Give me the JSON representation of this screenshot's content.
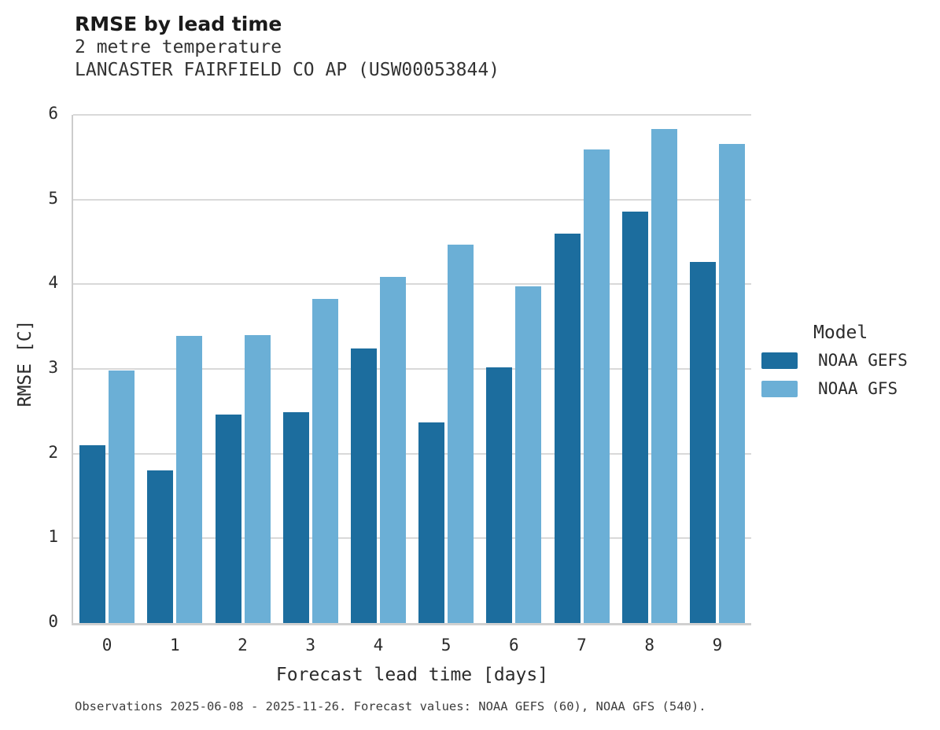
{
  "chart_data": {
    "type": "bar",
    "title": "RMSE by lead time",
    "subtitle": "2 metre temperature",
    "subtitle2": "LANCASTER FAIRFIELD CO AP (USW00053844)",
    "categories": [
      "0",
      "1",
      "2",
      "3",
      "4",
      "5",
      "6",
      "7",
      "8",
      "9"
    ],
    "series": [
      {
        "name": "NOAA GEFS",
        "color": "#1c6d9e",
        "values": [
          2.1,
          1.8,
          2.46,
          2.49,
          3.24,
          2.37,
          3.02,
          4.6,
          4.86,
          4.26
        ]
      },
      {
        "name": "NOAA GFS",
        "color": "#6bafd6",
        "values": [
          2.98,
          3.39,
          3.4,
          3.83,
          4.09,
          4.47,
          3.98,
          5.59,
          5.83,
          5.66
        ]
      }
    ],
    "xlabel": "Forecast lead time [days]",
    "ylabel": "RMSE [C]",
    "ylim": [
      0,
      6
    ],
    "yticks": [
      0,
      1,
      2,
      3,
      4,
      5,
      6
    ],
    "grid": true,
    "legend": {
      "title": "Model",
      "position": "right"
    },
    "caption": "Observations 2025-06-08 - 2025-11-26. Forecast values: NOAA GEFS (60), NOAA GFS (540)."
  },
  "colors": {
    "noaa_gefs": "#1c6d9e",
    "noaa_gfs": "#6bafd6",
    "gridline": "#d9d9d9",
    "text": "#2b2b2b"
  }
}
